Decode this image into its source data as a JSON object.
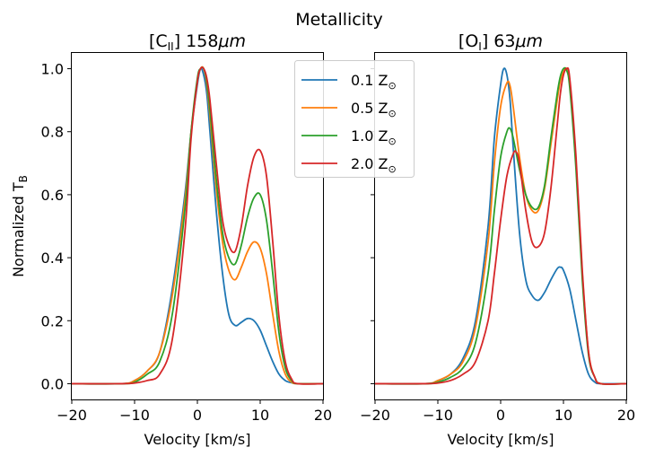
{
  "figure": {
    "suptitle": "Metallicity"
  },
  "chart_data": [
    {
      "type": "line",
      "title_main": "[C",
      "title_sub": "II",
      "title_tail": "] 158",
      "title_unit": "μm",
      "xlabel": "Velocity [km/s]",
      "ylabel_main": "Normalized T",
      "ylabel_sub": "B",
      "xlim": [
        -20,
        20
      ],
      "ylim": [
        -0.05,
        1.05
      ],
      "xticks": [
        -20,
        -10,
        0,
        10,
        20
      ],
      "xtick_labels": [
        "−20",
        "−10",
        "0",
        "10",
        "20"
      ],
      "yticks": [
        0.0,
        0.2,
        0.4,
        0.6,
        0.8,
        1.0
      ],
      "ytick_labels": [
        "0.0",
        "0.2",
        "0.4",
        "0.6",
        "0.8",
        "1.0"
      ],
      "series": [
        {
          "name": "0.1 Z☉",
          "color": "#1f77b4",
          "x": [
            -20,
            -12,
            -10,
            -8,
            -6,
            -4,
            -2,
            -1,
            0,
            0.5,
            1,
            1.5,
            2,
            3,
            4,
            5,
            6,
            7,
            8,
            9,
            10,
            11,
            12,
            13,
            14,
            15,
            16,
            20
          ],
          "y": [
            0,
            0,
            0.01,
            0.04,
            0.1,
            0.3,
            0.6,
            0.8,
            0.95,
            1.0,
            0.98,
            0.92,
            0.8,
            0.55,
            0.35,
            0.22,
            0.185,
            0.195,
            0.207,
            0.2,
            0.17,
            0.12,
            0.07,
            0.03,
            0.01,
            0.003,
            0,
            0
          ]
        },
        {
          "name": "0.5 Z☉",
          "color": "#ff7f0e",
          "x": [
            -20,
            -12,
            -10,
            -8,
            -6,
            -4,
            -2,
            -1,
            0,
            0.5,
            1,
            1.5,
            2,
            3,
            4,
            5,
            6,
            7,
            8,
            9,
            10,
            11,
            12,
            13,
            14,
            15,
            16,
            20
          ],
          "y": [
            0,
            0,
            0.01,
            0.04,
            0.1,
            0.28,
            0.58,
            0.8,
            0.96,
            1.0,
            1.0,
            0.95,
            0.85,
            0.62,
            0.45,
            0.36,
            0.33,
            0.37,
            0.42,
            0.45,
            0.43,
            0.35,
            0.22,
            0.1,
            0.03,
            0.005,
            0,
            0
          ]
        },
        {
          "name": "1.0 Z☉",
          "color": "#2ca02c",
          "x": [
            -20,
            -12,
            -10,
            -8,
            -6,
            -4,
            -2,
            -1,
            0,
            0.5,
            1,
            1.5,
            2,
            3,
            4,
            5,
            6,
            7,
            8,
            9,
            10,
            11,
            12,
            13,
            14,
            15,
            16,
            20
          ],
          "y": [
            0,
            0,
            0.005,
            0.03,
            0.07,
            0.22,
            0.55,
            0.8,
            0.97,
            1.0,
            1.0,
            0.96,
            0.87,
            0.65,
            0.48,
            0.4,
            0.38,
            0.44,
            0.53,
            0.59,
            0.6,
            0.52,
            0.35,
            0.16,
            0.05,
            0.01,
            0,
            0
          ]
        },
        {
          "name": "2.0 Z☉",
          "color": "#d62728",
          "x": [
            -20,
            -12,
            -10,
            -8,
            -6,
            -4,
            -2,
            -1,
            0,
            0.5,
            1,
            1.5,
            2,
            3,
            4,
            5,
            6,
            7,
            8,
            9,
            10,
            11,
            12,
            13,
            14,
            15,
            16,
            20
          ],
          "y": [
            0,
            0,
            0.002,
            0.01,
            0.03,
            0.14,
            0.48,
            0.78,
            0.96,
            1.0,
            1.0,
            0.97,
            0.9,
            0.7,
            0.52,
            0.44,
            0.42,
            0.5,
            0.63,
            0.72,
            0.74,
            0.66,
            0.45,
            0.21,
            0.07,
            0.015,
            0,
            0
          ]
        }
      ]
    },
    {
      "type": "line",
      "title_main": "[O",
      "title_sub": "I",
      "title_tail": "] 63",
      "title_unit": "μm",
      "xlabel": "Velocity [km/s]",
      "xlim": [
        -20,
        20
      ],
      "ylim": [
        -0.05,
        1.05
      ],
      "xticks": [
        -20,
        -10,
        0,
        10,
        20
      ],
      "xtick_labels": [
        "−20",
        "−10",
        "0",
        "10",
        "20"
      ],
      "series": [
        {
          "name": "0.1 Z☉",
          "color": "#1f77b4",
          "x": [
            -20,
            -12,
            -10,
            -8,
            -6,
            -4,
            -2,
            -1,
            0,
            0.5,
            1,
            1.5,
            2,
            3,
            4,
            5,
            6,
            7,
            8,
            9,
            9.5,
            10,
            11,
            12,
            13,
            14,
            15,
            16,
            20
          ],
          "y": [
            0,
            0,
            0.01,
            0.03,
            0.08,
            0.2,
            0.5,
            0.78,
            0.95,
            1.0,
            0.98,
            0.9,
            0.75,
            0.48,
            0.33,
            0.28,
            0.265,
            0.29,
            0.33,
            0.365,
            0.37,
            0.36,
            0.3,
            0.2,
            0.1,
            0.03,
            0.005,
            0,
            0
          ]
        },
        {
          "name": "0.5 Z☉",
          "color": "#ff7f0e",
          "x": [
            -20,
            -12,
            -10,
            -8,
            -6,
            -4,
            -2,
            -1,
            0,
            1,
            1.5,
            2,
            3,
            4,
            5,
            6,
            7,
            8,
            9,
            9.5,
            10,
            10.5,
            11,
            12,
            13,
            14,
            15,
            16,
            20
          ],
          "y": [
            0,
            0,
            0.01,
            0.03,
            0.07,
            0.18,
            0.45,
            0.7,
            0.88,
            0.955,
            0.945,
            0.88,
            0.72,
            0.6,
            0.55,
            0.55,
            0.62,
            0.76,
            0.9,
            0.96,
            0.99,
            1.0,
            0.95,
            0.7,
            0.35,
            0.1,
            0.02,
            0,
            0
          ]
        },
        {
          "name": "1.0 Z☉",
          "color": "#2ca02c",
          "x": [
            -20,
            -12,
            -10,
            -8,
            -6,
            -4,
            -2,
            -1,
            0,
            1,
            1.5,
            2,
            3,
            4,
            5,
            6,
            7,
            8,
            9,
            9.5,
            10,
            10.5,
            11,
            12,
            13,
            14,
            15,
            16,
            20
          ],
          "y": [
            0,
            0,
            0.005,
            0.02,
            0.05,
            0.13,
            0.35,
            0.55,
            0.72,
            0.8,
            0.81,
            0.78,
            0.68,
            0.6,
            0.56,
            0.56,
            0.63,
            0.78,
            0.92,
            0.975,
            1.0,
            0.995,
            0.94,
            0.68,
            0.33,
            0.09,
            0.02,
            0,
            0
          ]
        },
        {
          "name": "2.0 Z☉",
          "color": "#d62728",
          "x": [
            -20,
            -12,
            -10,
            -8,
            -6,
            -4,
            -2,
            -1,
            0,
            1,
            2,
            2.5,
            3,
            4,
            5,
            6,
            7,
            8,
            9,
            9.5,
            10,
            10.5,
            11,
            12,
            13,
            14,
            15,
            16,
            20
          ],
          "y": [
            0,
            0,
            0.002,
            0.01,
            0.03,
            0.07,
            0.2,
            0.35,
            0.52,
            0.66,
            0.73,
            0.735,
            0.7,
            0.55,
            0.45,
            0.435,
            0.48,
            0.62,
            0.82,
            0.92,
            0.98,
            1.0,
            0.97,
            0.72,
            0.36,
            0.1,
            0.02,
            0,
            0
          ]
        }
      ]
    }
  ],
  "legend": {
    "placement": "top-center",
    "items": [
      {
        "value": "0.1",
        "symbol": "Z",
        "sub": "⊙",
        "color": "#1f77b4"
      },
      {
        "value": "0.5",
        "symbol": "Z",
        "sub": "⊙",
        "color": "#ff7f0e"
      },
      {
        "value": "1.0",
        "symbol": "Z",
        "sub": "⊙",
        "color": "#2ca02c"
      },
      {
        "value": "2.0",
        "symbol": "Z",
        "sub": "⊙",
        "color": "#d62728"
      }
    ]
  }
}
